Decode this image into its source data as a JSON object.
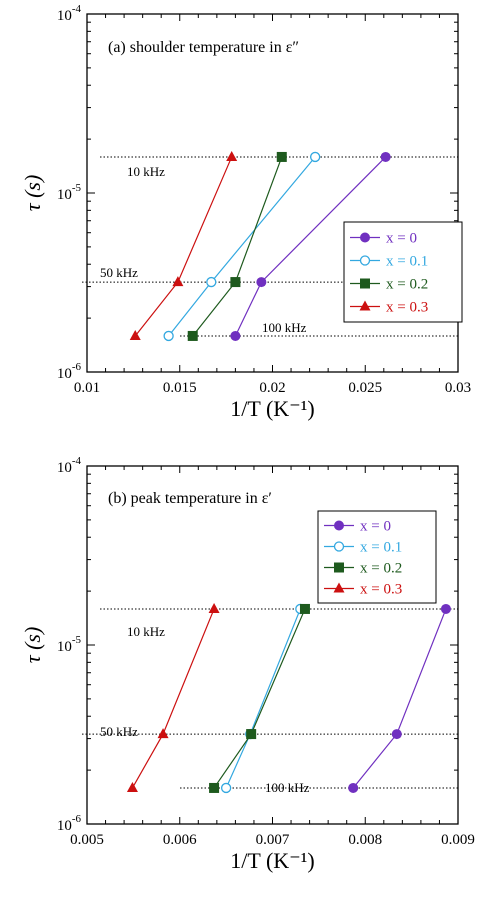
{
  "chart_data": [
    {
      "type": "scatter",
      "title": "(a) shoulder temperature in ε″",
      "xlabel": "1/T (K⁻¹)",
      "ylabel": "τ (s)",
      "xscale": "linear",
      "yscale": "log",
      "xlim": [
        0.01,
        0.03
      ],
      "ylim": [
        1e-06,
        0.0001
      ],
      "x_ticks": [
        0.01,
        0.015,
        0.02,
        0.025,
        0.03
      ],
      "x_tick_labels": [
        "0.01",
        "0.015",
        "0.02",
        "0.025",
        "0.03"
      ],
      "y_tick_labels": [
        "10⁻⁶",
        "10⁻⁵",
        "10⁻⁴"
      ],
      "y_ticks": [
        1e-06,
        1e-05,
        0.0001
      ],
      "legend": "center-right",
      "reference_lines": [
        {
          "label": "10 kHz",
          "y": 1.59e-05
        },
        {
          "label": "50 kHz",
          "y": 3.18e-06
        },
        {
          "label": "100 kHz",
          "y": 1.59e-06
        }
      ],
      "series": [
        {
          "name": "x = 0",
          "color": "#7030c0",
          "marker": "circle-filled",
          "x": [
            0.0261,
            0.0194,
            0.018
          ],
          "y": [
            1.59e-05,
            3.18e-06,
            1.59e-06
          ]
        },
        {
          "name": "x = 0.1",
          "color": "#33a8e0",
          "marker": "circle-open",
          "x": [
            0.0223,
            0.0167,
            0.0144
          ],
          "y": [
            1.59e-05,
            3.18e-06,
            1.59e-06
          ]
        },
        {
          "name": "x = 0.2",
          "color": "#1e5a1e",
          "marker": "square-filled",
          "x": [
            0.0205,
            0.018,
            0.0157
          ],
          "y": [
            1.59e-05,
            3.18e-06,
            1.59e-06
          ]
        },
        {
          "name": "x = 0.3",
          "color": "#cc1010",
          "marker": "triangle-filled",
          "x": [
            0.0178,
            0.0149,
            0.0126
          ],
          "y": [
            1.59e-05,
            3.18e-06,
            1.59e-06
          ]
        }
      ]
    },
    {
      "type": "scatter",
      "title": "(b) peak temperature in ε′",
      "xlabel": "1/T (K⁻¹)",
      "ylabel": "τ (s)",
      "xscale": "linear",
      "yscale": "log",
      "xlim": [
        0.005,
        0.009
      ],
      "ylim": [
        1e-06,
        0.0001
      ],
      "x_ticks": [
        0.005,
        0.006,
        0.007,
        0.008,
        0.009
      ],
      "x_tick_labels": [
        "0.005",
        "0.006",
        "0.007",
        "0.008",
        "0.009"
      ],
      "y_tick_labels": [
        "10⁻⁶",
        "10⁻⁵",
        "10⁻⁴"
      ],
      "y_ticks": [
        1e-06,
        1e-05,
        0.0001
      ],
      "legend": "top-right",
      "reference_lines": [
        {
          "label": "10 kHz",
          "y": 1.59e-05
        },
        {
          "label": "50 kHz",
          "y": 3.18e-06
        },
        {
          "label": "100 kHz",
          "y": 1.59e-06
        }
      ],
      "series": [
        {
          "name": "x = 0",
          "color": "#7030c0",
          "marker": "circle-filled",
          "x": [
            0.00887,
            0.00834,
            0.00787
          ],
          "y": [
            1.59e-05,
            3.18e-06,
            1.59e-06
          ]
        },
        {
          "name": "x = 0.1",
          "color": "#33a8e0",
          "marker": "circle-open",
          "x": [
            0.0073,
            0.00676,
            0.0065
          ],
          "y": [
            1.59e-05,
            3.18e-06,
            1.59e-06
          ]
        },
        {
          "name": "x = 0.2",
          "color": "#1e5a1e",
          "marker": "square-filled",
          "x": [
            0.00735,
            0.00677,
            0.00637
          ],
          "y": [
            1.59e-05,
            3.18e-06,
            1.59e-06
          ]
        },
        {
          "name": "x = 0.3",
          "color": "#cc1010",
          "marker": "triangle-filled",
          "x": [
            0.00637,
            0.00582,
            0.00549
          ],
          "y": [
            1.59e-05,
            3.18e-06,
            1.59e-06
          ]
        }
      ]
    }
  ]
}
